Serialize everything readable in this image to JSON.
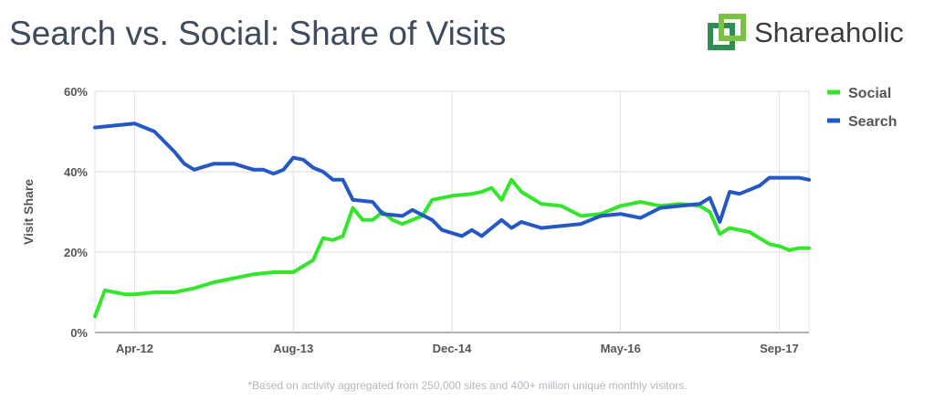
{
  "header": {
    "title": "Search vs. Social: Share of Visits"
  },
  "brand": {
    "name": "Shareaholic",
    "logo_colors": [
      "#2f8f52",
      "#7bc143"
    ]
  },
  "footnote": "*Based on activity aggregated from 250,000 sites and 400+ million unique monthly visitors.",
  "chart_data": {
    "type": "line",
    "title": "Search vs. Social: Share of Visits",
    "xlabel": "",
    "ylabel": "Visit Share",
    "ylim": [
      0,
      60
    ],
    "yticks": [
      0,
      20,
      40,
      60
    ],
    "ytick_labels": [
      "0%",
      "20%",
      "40%",
      "60%"
    ],
    "x_start": "Dec-11",
    "x_end": "Dec-17",
    "xticks": [
      "Apr-12",
      "Aug-13",
      "Dec-14",
      "May-16",
      "Sep-17"
    ],
    "grid": true,
    "legend": "right",
    "series": [
      {
        "name": "Social",
        "color": "#33e62b",
        "points": [
          [
            "Dec-11",
            4
          ],
          [
            "Jan-12",
            10.5
          ],
          [
            "Feb-12",
            10
          ],
          [
            "Mar-12",
            9.5
          ],
          [
            "Apr-12",
            9.5
          ],
          [
            "Jun-12",
            10
          ],
          [
            "Aug-12",
            10
          ],
          [
            "Oct-12",
            11
          ],
          [
            "Dec-12",
            12.5
          ],
          [
            "Feb-13",
            13.5
          ],
          [
            "Apr-13",
            14.5
          ],
          [
            "Jun-13",
            15
          ],
          [
            "Aug-13",
            15
          ],
          [
            "Oct-13",
            18
          ],
          [
            "Nov-13",
            23.5
          ],
          [
            "Dec-13",
            23
          ],
          [
            "Jan-14",
            24
          ],
          [
            "Feb-14",
            31
          ],
          [
            "Mar-14",
            28
          ],
          [
            "Apr-14",
            28
          ],
          [
            "May-14",
            30
          ],
          [
            "Jun-14",
            28
          ],
          [
            "Jul-14",
            27
          ],
          [
            "Sep-14",
            29
          ],
          [
            "Oct-14",
            33
          ],
          [
            "Dec-14",
            34
          ],
          [
            "Feb-15",
            34.5
          ],
          [
            "Mar-15",
            35
          ],
          [
            "Apr-15",
            36
          ],
          [
            "May-15",
            33
          ],
          [
            "Jun-15",
            38
          ],
          [
            "Jul-15",
            35
          ],
          [
            "Sep-15",
            32
          ],
          [
            "Nov-15",
            31.5
          ],
          [
            "Jan-16",
            29
          ],
          [
            "Mar-16",
            29.5
          ],
          [
            "May-16",
            31.5
          ],
          [
            "Jul-16",
            32.5
          ],
          [
            "Sep-16",
            31.5
          ],
          [
            "Nov-16",
            32
          ],
          [
            "Jan-17",
            31.5
          ],
          [
            "Feb-17",
            30
          ],
          [
            "Mar-17",
            24.5
          ],
          [
            "Apr-17",
            26
          ],
          [
            "Jun-17",
            25
          ],
          [
            "Aug-17",
            22
          ],
          [
            "Sep-17",
            21.5
          ],
          [
            "Oct-17",
            20.5
          ],
          [
            "Nov-17",
            21
          ],
          [
            "Dec-17",
            21
          ]
        ]
      },
      {
        "name": "Search",
        "color": "#2558c4",
        "points": [
          [
            "Dec-11",
            51
          ],
          [
            "Feb-12",
            51.5
          ],
          [
            "Apr-12",
            52
          ],
          [
            "Jun-12",
            50
          ],
          [
            "Aug-12",
            45
          ],
          [
            "Sep-12",
            42
          ],
          [
            "Oct-12",
            40.5
          ],
          [
            "Dec-12",
            42
          ],
          [
            "Feb-13",
            42
          ],
          [
            "Apr-13",
            40.5
          ],
          [
            "May-13",
            40.5
          ],
          [
            "Jun-13",
            39.5
          ],
          [
            "Jul-13",
            40.5
          ],
          [
            "Aug-13",
            43.5
          ],
          [
            "Sep-13",
            43
          ],
          [
            "Oct-13",
            41
          ],
          [
            "Nov-13",
            40
          ],
          [
            "Dec-13",
            38
          ],
          [
            "Jan-14",
            38
          ],
          [
            "Feb-14",
            33
          ],
          [
            "Apr-14",
            32.5
          ],
          [
            "May-14",
            29.5
          ],
          [
            "Jul-14",
            29
          ],
          [
            "Aug-14",
            30.5
          ],
          [
            "Oct-14",
            28
          ],
          [
            "Nov-14",
            25.5
          ],
          [
            "Jan-15",
            24
          ],
          [
            "Feb-15",
            25.5
          ],
          [
            "Mar-15",
            24
          ],
          [
            "May-15",
            28
          ],
          [
            "Jun-15",
            26
          ],
          [
            "Jul-15",
            27.5
          ],
          [
            "Sep-15",
            26
          ],
          [
            "Nov-15",
            26.5
          ],
          [
            "Jan-16",
            27
          ],
          [
            "Mar-16",
            29
          ],
          [
            "May-16",
            29.5
          ],
          [
            "Jul-16",
            28.5
          ],
          [
            "Sep-16",
            31
          ],
          [
            "Nov-16",
            31.5
          ],
          [
            "Jan-17",
            32
          ],
          [
            "Feb-17",
            33.5
          ],
          [
            "Mar-17",
            27.5
          ],
          [
            "Apr-17",
            35
          ],
          [
            "May-17",
            34.5
          ],
          [
            "Jul-17",
            36.5
          ],
          [
            "Aug-17",
            38.5
          ],
          [
            "Oct-17",
            38.5
          ],
          [
            "Nov-17",
            38.5
          ],
          [
            "Dec-17",
            38
          ]
        ]
      }
    ]
  }
}
